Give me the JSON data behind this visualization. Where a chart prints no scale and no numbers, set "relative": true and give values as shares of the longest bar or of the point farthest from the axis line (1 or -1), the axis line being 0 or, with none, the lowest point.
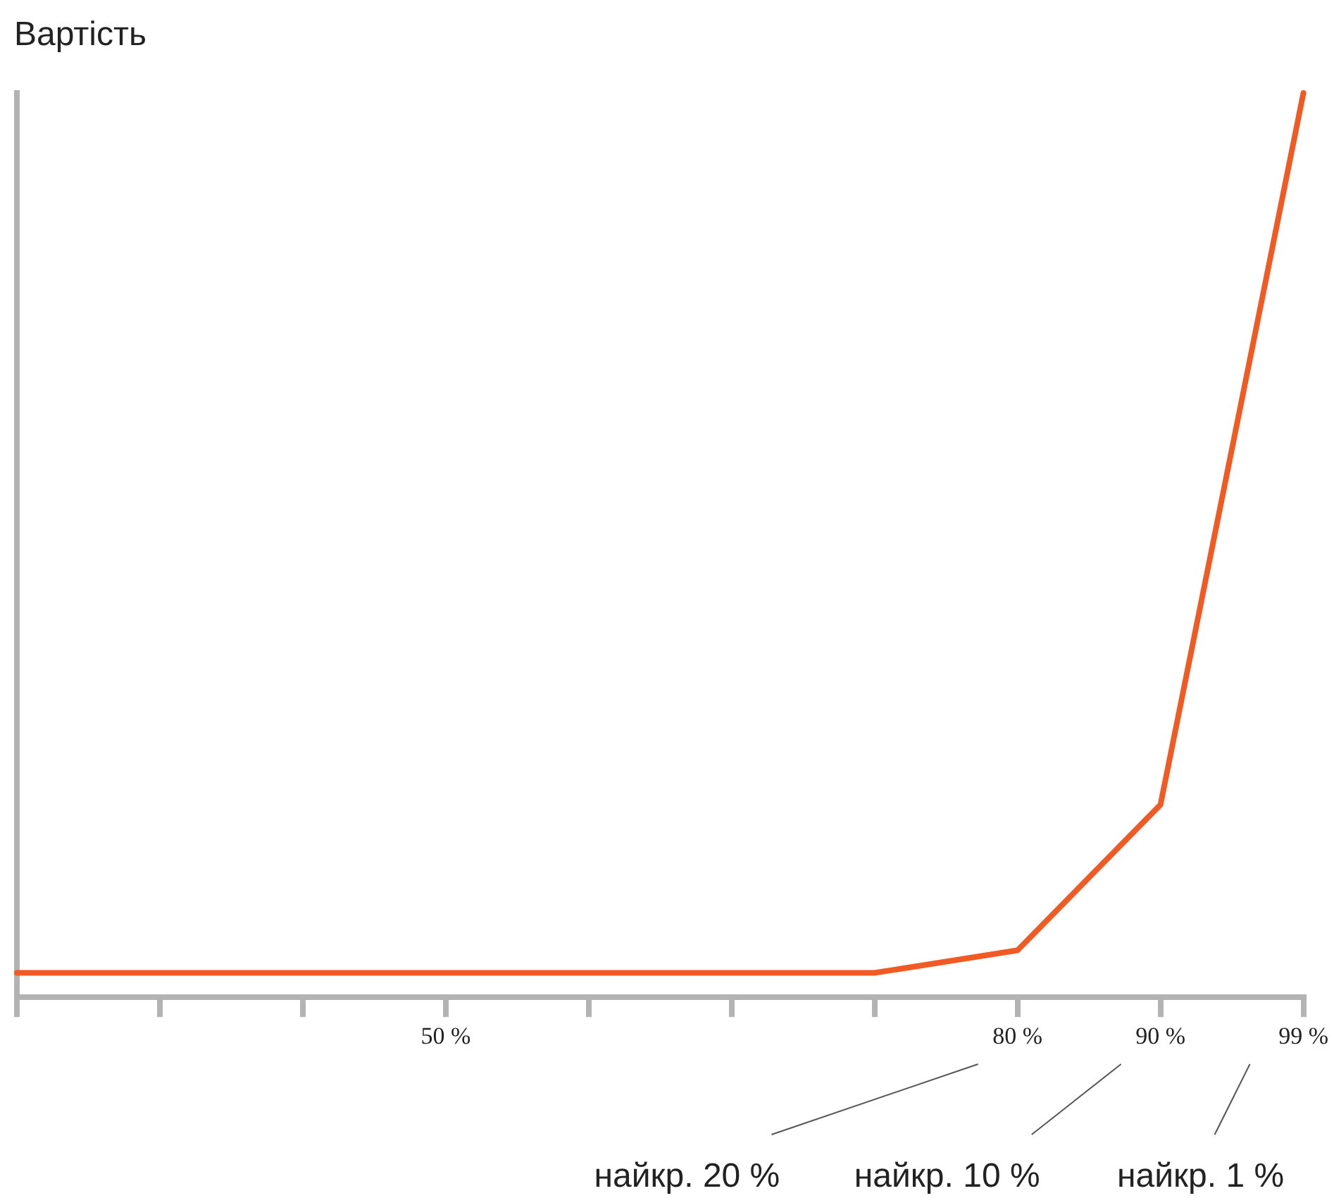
{
  "chart_data": {
    "type": "line",
    "ylabel": "Вартість",
    "relative": true,
    "grid": false,
    "legend": false,
    "marker": "none",
    "categories": [
      null,
      null,
      null,
      "50 %",
      null,
      null,
      null,
      "80 %",
      "90 %",
      "99 %"
    ],
    "series": [
      {
        "color": "#f15a22",
        "values": [
          0.027,
          0.027,
          0.027,
          0.027,
          0.027,
          0.027,
          0.027,
          0.052,
          0.213,
          1
        ]
      }
    ],
    "annotations": [
      "найкр. 20 %",
      "найкр. 10 %",
      "найкр. 1 %"
    ]
  }
}
